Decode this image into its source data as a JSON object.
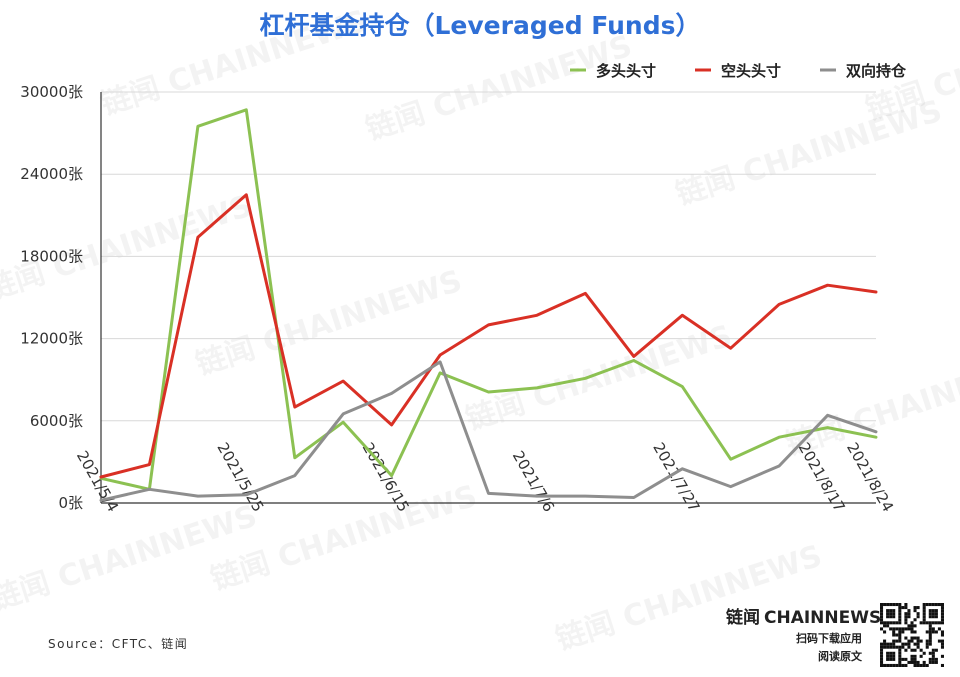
{
  "chart_data": {
    "type": "line",
    "title": "杠杆基金持仓（Leveraged Funds）",
    "unit_suffix": "张",
    "ylim": [
      0,
      30000
    ],
    "y_ticks": [
      0,
      6000,
      12000,
      18000,
      24000,
      30000
    ],
    "x_tick_labels": [
      "2021/5/4",
      "2021/5/25",
      "2021/6/15",
      "2021/7/6",
      "2021/7/27",
      "2021/8/17",
      "2021/8/24"
    ],
    "x_tick_index": [
      0,
      3,
      6,
      9,
      12,
      15,
      16
    ],
    "x_count": 17,
    "grid": true,
    "legend_position": "top-right",
    "series": [
      {
        "name": "多头头寸",
        "color": "#8cc152",
        "values": [
          1800,
          1000,
          27500,
          28700,
          3300,
          5900,
          2000,
          9500,
          8100,
          8400,
          9100,
          10400,
          8500,
          3200,
          4800,
          5500,
          4800
        ]
      },
      {
        "name": "空头头寸",
        "color": "#d93025",
        "values": [
          1900,
          2800,
          19400,
          22500,
          7000,
          8900,
          5700,
          10800,
          13000,
          13700,
          15300,
          10700,
          13700,
          11300,
          14500,
          15900,
          15400
        ]
      },
      {
        "name": "双向持仓",
        "color": "#8e8e8e",
        "values": [
          200,
          1000,
          500,
          600,
          2000,
          6500,
          8000,
          10300,
          700,
          500,
          500,
          400,
          2500,
          1200,
          2700,
          6400,
          5200
        ]
      }
    ]
  },
  "source_text": "Source：CFTC、链闻",
  "brand": {
    "name_cn": "链闻",
    "name_en": "CHAINNEWS",
    "cta_line1": "扫码下载应用",
    "cta_line2": "阅读原文"
  },
  "watermark_text": "链闻 CHAINNEWS"
}
